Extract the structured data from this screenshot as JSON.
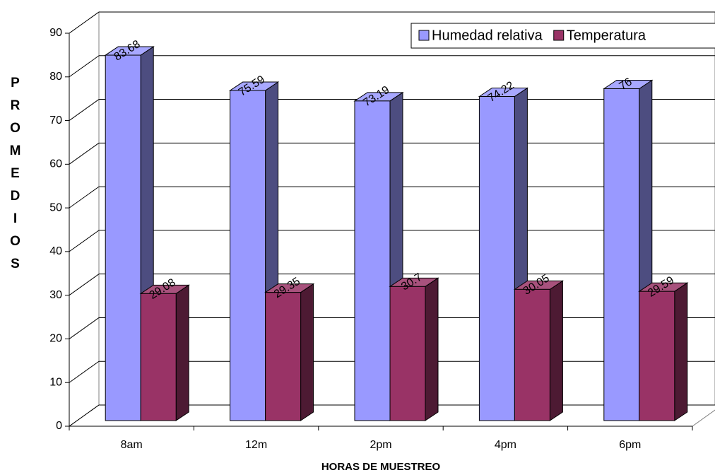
{
  "chart_data": {
    "type": "bar3d",
    "x_label": "HORAS DE MUESTREO",
    "y_label": "PROMEDIOS",
    "categories": [
      "8am",
      "12m",
      "2pm",
      "4pm",
      "6pm"
    ],
    "series": [
      {
        "name": "Humedad relativa",
        "color": "#9999ff",
        "values": [
          83.68,
          75.59,
          73.19,
          74.22,
          76
        ]
      },
      {
        "name": "Temperatura",
        "color": "#993366",
        "values": [
          29.08,
          29.35,
          30.7,
          30.05,
          29.59
        ]
      }
    ],
    "ylim": [
      0,
      90
    ],
    "yticks": [
      0,
      10,
      20,
      30,
      40,
      50,
      60,
      70,
      80,
      90
    ],
    "grid": true,
    "legend": "top-right"
  }
}
